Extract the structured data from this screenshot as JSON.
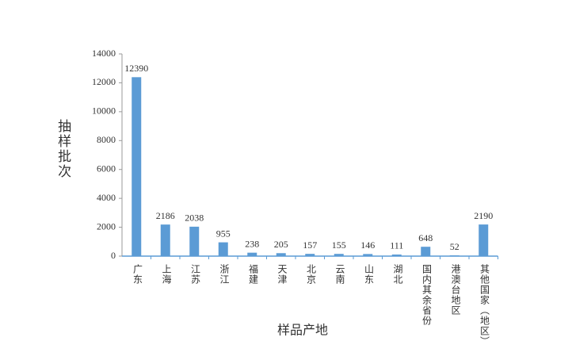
{
  "chart_data": {
    "type": "bar",
    "y_label": "抽样批次",
    "x_label": "样品产地",
    "categories": [
      "广东",
      "上海",
      "江苏",
      "浙江",
      "福建",
      "天津",
      "北京",
      "云南",
      "山东",
      "湖北",
      "国内其余省份",
      "港澳台地区",
      "其他国家（地区）"
    ],
    "values": [
      12390,
      2186,
      2038,
      955,
      238,
      205,
      157,
      155,
      146,
      111,
      648,
      52,
      2190
    ],
    "color": "#5b9bd5",
    "ylim": [
      0,
      14000
    ],
    "yticks": [
      0,
      2000,
      4000,
      6000,
      8000,
      10000,
      12000,
      14000
    ],
    "grid": false
  }
}
